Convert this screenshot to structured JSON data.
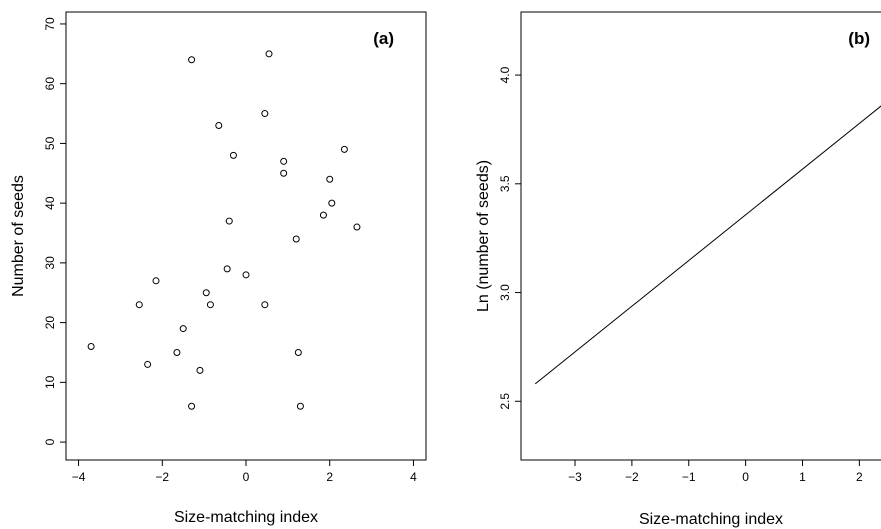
{
  "chart_data": [
    {
      "type": "scatter",
      "panel_label": "(a)",
      "xlabel": "Size-matching index",
      "ylabel": "Number of seeds",
      "xlim": [
        -4.3,
        4.3
      ],
      "ylim": [
        -3,
        72
      ],
      "xticks": [
        -4,
        -2,
        0,
        2,
        4
      ],
      "yticks": [
        0,
        10,
        20,
        30,
        40,
        50,
        60,
        70
      ],
      "grid": false,
      "points": [
        {
          "x": -3.7,
          "y": 16
        },
        {
          "x": -2.55,
          "y": 23
        },
        {
          "x": -2.35,
          "y": 13
        },
        {
          "x": -2.15,
          "y": 27
        },
        {
          "x": -1.65,
          "y": 15
        },
        {
          "x": -1.5,
          "y": 19
        },
        {
          "x": -1.3,
          "y": 64
        },
        {
          "x": -1.3,
          "y": 6
        },
        {
          "x": -1.1,
          "y": 12
        },
        {
          "x": -0.95,
          "y": 25
        },
        {
          "x": -0.85,
          "y": 23
        },
        {
          "x": -0.65,
          "y": 53
        },
        {
          "x": -0.45,
          "y": 29
        },
        {
          "x": -0.4,
          "y": 37
        },
        {
          "x": -0.3,
          "y": 48
        },
        {
          "x": 0.0,
          "y": 28
        },
        {
          "x": 0.45,
          "y": 55
        },
        {
          "x": 0.45,
          "y": 23
        },
        {
          "x": 0.55,
          "y": 65
        },
        {
          "x": 0.9,
          "y": 47
        },
        {
          "x": 0.9,
          "y": 45
        },
        {
          "x": 1.2,
          "y": 34
        },
        {
          "x": 1.25,
          "y": 15
        },
        {
          "x": 1.3,
          "y": 6
        },
        {
          "x": 1.85,
          "y": 38
        },
        {
          "x": 2.0,
          "y": 44
        },
        {
          "x": 2.05,
          "y": 40
        },
        {
          "x": 2.35,
          "y": 49
        },
        {
          "x": 2.65,
          "y": 36
        }
      ]
    },
    {
      "type": "line",
      "panel_label": "(b)",
      "xlabel": "Size-matching index",
      "ylabel": "Ln (number of seeds)",
      "xlim": [
        -3.95,
        2.75
      ],
      "ylim": [
        2.23,
        4.29
      ],
      "xticks": [
        -3,
        -2,
        -1,
        0,
        1,
        2
      ],
      "yticks": [
        2.5,
        3.0,
        3.5,
        4.0
      ],
      "ytick_labels": [
        "2.5",
        "3.0",
        "3.5",
        "4.0"
      ],
      "grid": false,
      "series": [
        {
          "x": [
            -3.7,
            2.75
          ],
          "y": [
            2.58,
            3.935
          ]
        }
      ]
    }
  ]
}
